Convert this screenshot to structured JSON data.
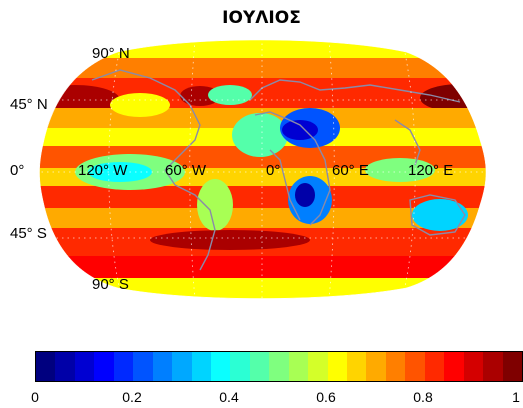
{
  "title": "ΙΟΥΛΙΟΣ",
  "map": {
    "projection": "Robinson",
    "lat_labels": [
      "90° N",
      "45° N",
      "0°",
      "45° S",
      "90° S"
    ],
    "lon_labels": [
      "120° W",
      "60° W",
      "0°",
      "60° E",
      "120° E"
    ],
    "palette": [
      "#00007f",
      "#0000a8",
      "#0000d2",
      "#0000ff",
      "#0029ff",
      "#0054ff",
      "#007fff",
      "#00a8ff",
      "#00d4ff",
      "#0affff",
      "#2bffd4",
      "#54ffaa",
      "#7fff7f",
      "#a8ff54",
      "#d4ff29",
      "#ffff00",
      "#ffd400",
      "#ffaa00",
      "#ff7f00",
      "#ff5400",
      "#ff2900",
      "#ff0000",
      "#d40000",
      "#aa0000",
      "#7f0000"
    ],
    "land_color": "#8a8aa8"
  },
  "colorbar": {
    "ticks": [
      "0",
      "0.2",
      "0.4",
      "0.6",
      "0.8",
      "1"
    ],
    "range": [
      0,
      1
    ]
  }
}
